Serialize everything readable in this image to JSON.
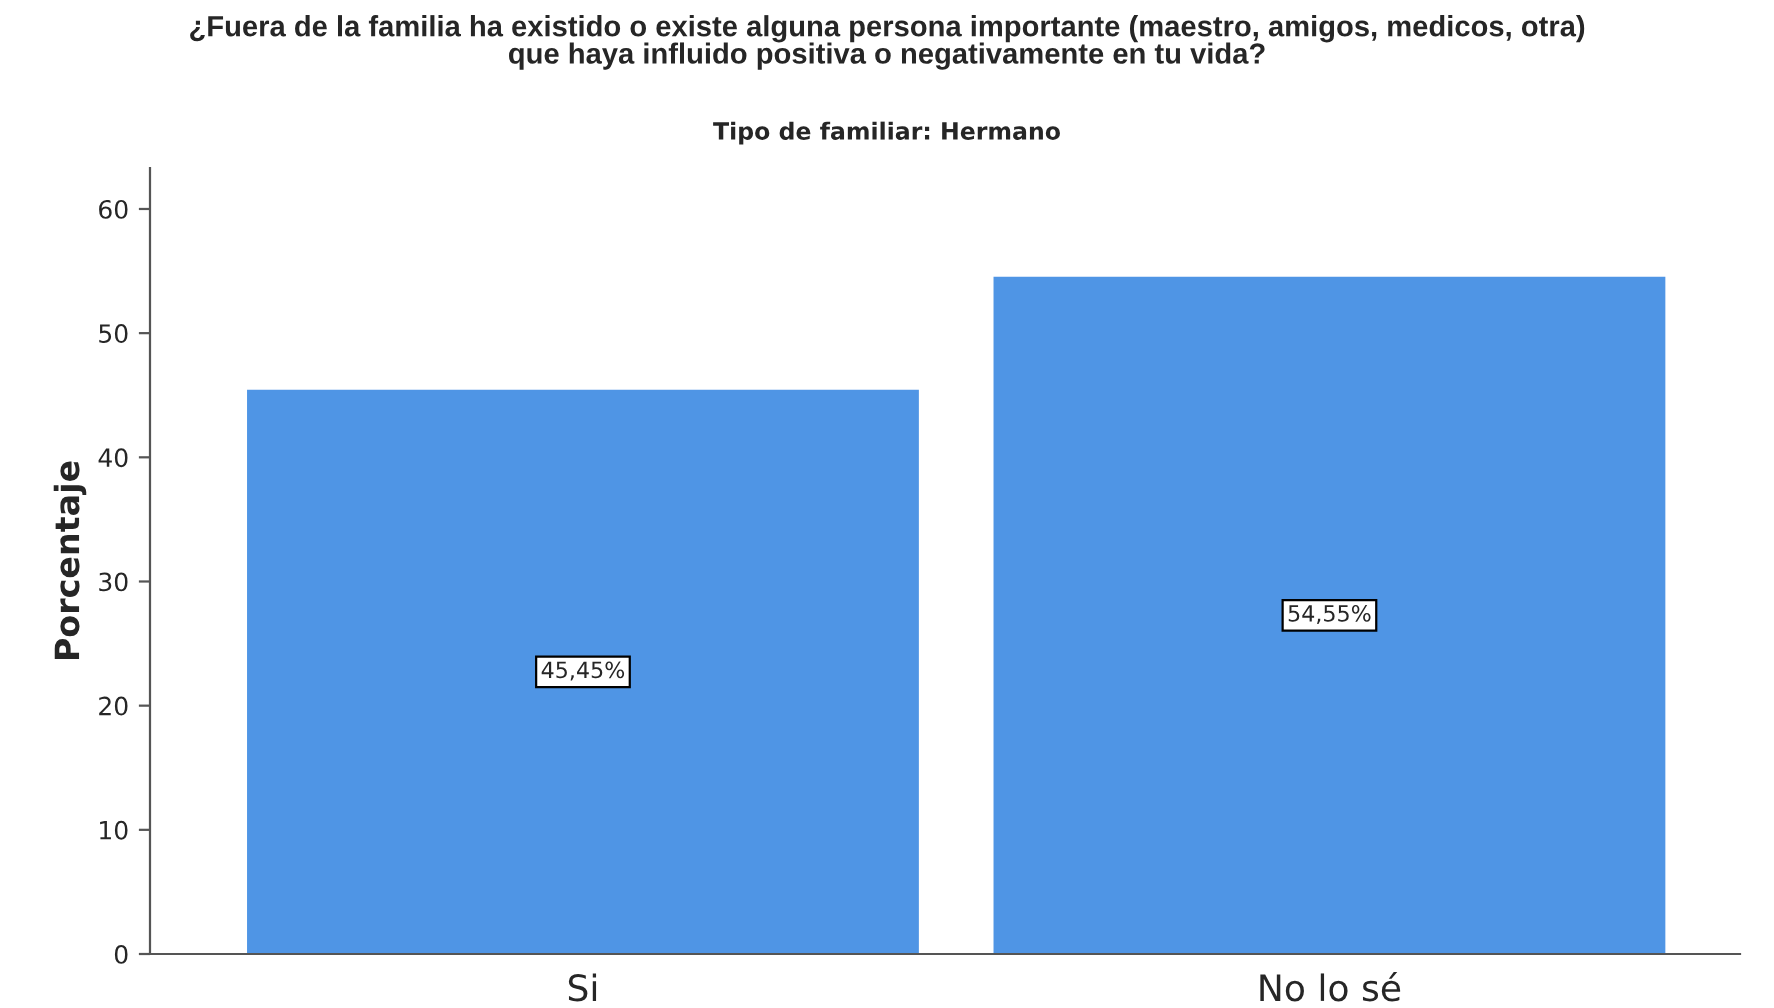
{
  "chart_data": {
    "type": "bar",
    "title": "¿Fuera de la familia ha existido o existe alguna persona importante (maestro, amigos, medicos, otra)\nque haya influido positiva o negativamente en tu vida?",
    "subtitle": "Tipo de familiar: Hermano",
    "ylabel": "Porcentaje",
    "categories": [
      "Si",
      "No lo sé"
    ],
    "values": [
      45.45,
      54.55
    ],
    "value_labels": [
      "45,45%",
      "54,55%"
    ],
    "color": "#4f95e5",
    "ylim": [
      0,
      63.3
    ],
    "yticks": [
      0,
      10,
      20,
      30,
      40,
      50,
      60
    ],
    "grid": false
  }
}
